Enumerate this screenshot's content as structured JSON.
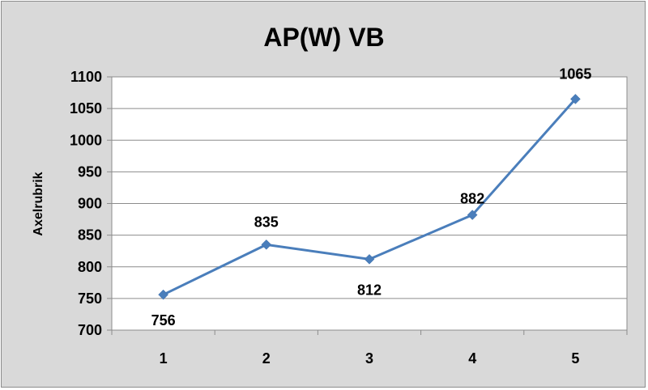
{
  "chart_data": {
    "type": "line",
    "title": "AP(W) VB",
    "xlabel": "",
    "ylabel": "Axelrubrik",
    "categories": [
      "1",
      "2",
      "3",
      "4",
      "5"
    ],
    "series": [
      {
        "values": [
          756,
          835,
          812,
          882,
          1065
        ],
        "color": "#4a7ebb"
      }
    ],
    "data_labels": [
      "756",
      "835",
      "812",
      "882",
      "1065"
    ],
    "ylim": [
      700,
      1100
    ],
    "yticks": [
      "700",
      "750",
      "800",
      "850",
      "900",
      "950",
      "1000",
      "1050",
      "1100"
    ],
    "grid": true,
    "legend": "none"
  },
  "colors": {
    "frame_background": "#d9d9d9",
    "plot_background": "#ffffff",
    "gridline": "#8c8c8c",
    "series_line": "#4a7ebb"
  }
}
